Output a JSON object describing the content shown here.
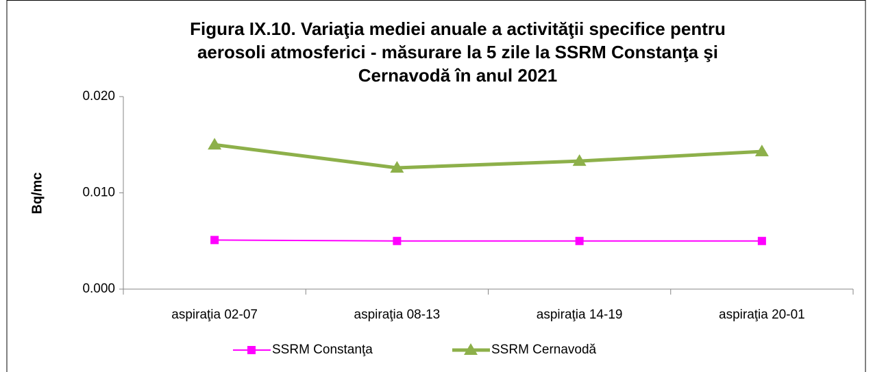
{
  "chart_data": {
    "type": "line",
    "title": [
      "Figura IX.10. Variaţia mediei anuale a activităţii specifice pentru",
      "aerosoli atmosferici - măsurare la 5 zile la SSRM Constanţa şi",
      "Cernavodă în anul 2021"
    ],
    "y_label": "Bq/mc",
    "categories": [
      "aspiraţia 02-07",
      "aspiraţia 08-13",
      "aspiraţia 14-19",
      "aspiraţia 20-01"
    ],
    "series": [
      {
        "name": "SSRM Constanţa",
        "color": "#ff00ff",
        "marker": "square",
        "values": [
          0.0051,
          0.005,
          0.005,
          0.005
        ]
      },
      {
        "name": "SSRM Cernavodă",
        "color": "#8db04a",
        "marker": "triangle",
        "values": [
          0.015,
          0.0126,
          0.0133,
          0.0143
        ]
      }
    ],
    "ylim": [
      0,
      0.02
    ],
    "yticks": [
      {
        "value": 0,
        "label": "0.000"
      },
      {
        "value": 0.01,
        "label": "0.010"
      },
      {
        "value": 0.02,
        "label": "0.020"
      }
    ],
    "legend": "bottom"
  }
}
